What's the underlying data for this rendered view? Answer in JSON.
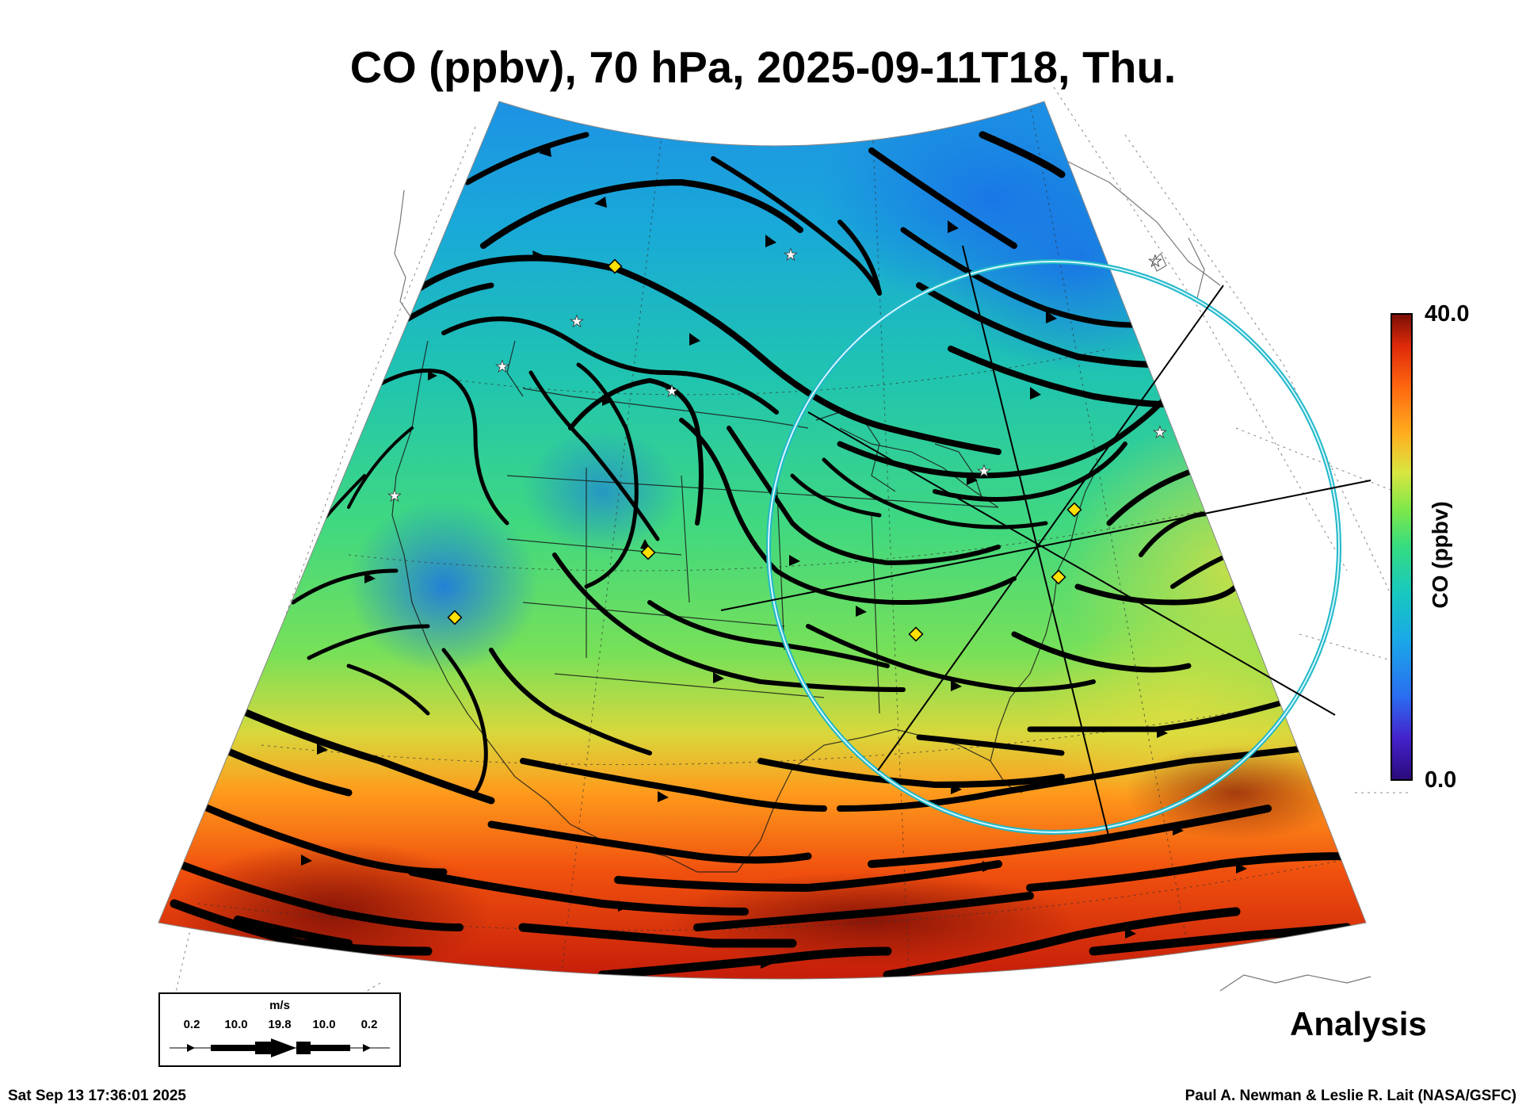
{
  "title": "CO (ppbv), 70 hPa, 2025-09-11T18, Thu.",
  "colorbar": {
    "label": "CO (ppbv)",
    "max_label": "40.0",
    "min_label": "0.0",
    "stops": [
      "#2a0a7a",
      "#4422cc",
      "#2a6ef0",
      "#1aa8e8",
      "#17c8c0",
      "#35dc80",
      "#7ee84a",
      "#d8e640",
      "#ffb020",
      "#ff6a10",
      "#e02a0a",
      "#7a0e06"
    ]
  },
  "wind_legend": {
    "unit": "m/s",
    "values": [
      "0.2",
      "10.0",
      "19.8",
      "10.0",
      "0.2"
    ]
  },
  "run_label": "Analysis",
  "timestamp": "Sat Sep 13 17:36:01 2025",
  "credit": "Paul A. Newman & Leslie R. Lait (NASA/GSFC)",
  "markers": {
    "diamond_color": "#ffe000",
    "star_color": "#ffffff"
  }
}
